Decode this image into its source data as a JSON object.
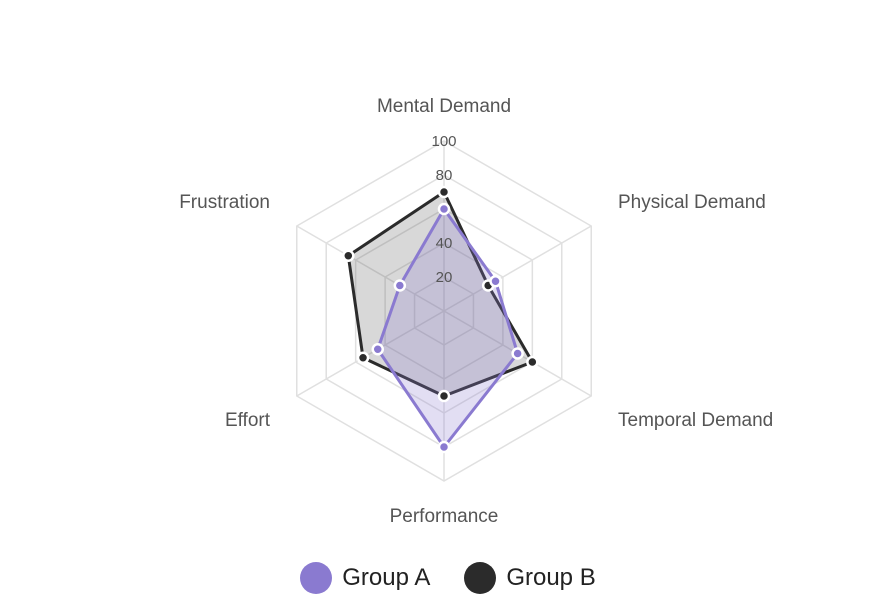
{
  "chart_data": {
    "type": "radar",
    "title": "",
    "categories": [
      "Mental Demand",
      "Physical Demand",
      "Temporal Demand",
      "Performance",
      "Effort",
      "Frustration"
    ],
    "series": [
      {
        "name": "Group A",
        "values": [
          60,
          35,
          50,
          80,
          45,
          30
        ],
        "color": "#8a7ad0",
        "fill": "rgba(138,122,208,0.25)"
      },
      {
        "name": "Group B",
        "values": [
          70,
          30,
          60,
          50,
          55,
          65
        ],
        "color": "#2b2b2b",
        "fill": "rgba(60,60,60,0.2)"
      }
    ],
    "radial_ticks": [
      20,
      40,
      60,
      80,
      100
    ],
    "radial_tick_labels_shown": [
      "20",
      "40",
      "80",
      "100"
    ],
    "rlim": [
      0,
      100
    ],
    "grid": true,
    "legend_position": "bottom"
  },
  "legend": {
    "items": [
      {
        "label": "Group A",
        "color": "#8a7ad0"
      },
      {
        "label": "Group B",
        "color": "#2b2b2b"
      }
    ]
  }
}
